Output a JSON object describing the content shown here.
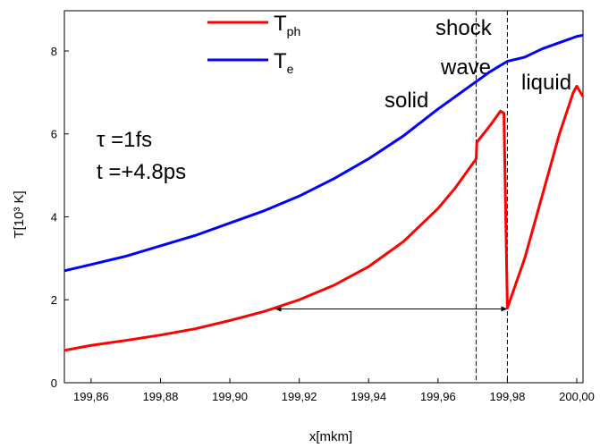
{
  "chart_data": {
    "type": "line",
    "xlabel": "x[mkm]",
    "ylabel": "T[10³ K]",
    "xlim": [
      199.8523,
      200.0018
    ],
    "ylim": [
      0,
      8.97
    ],
    "xticks": [
      {
        "value": 199.86,
        "label": "199,86"
      },
      {
        "value": 199.88,
        "label": "199,88"
      },
      {
        "value": 199.9,
        "label": "199,90"
      },
      {
        "value": 199.92,
        "label": "199,92"
      },
      {
        "value": 199.94,
        "label": "199,94"
      },
      {
        "value": 199.96,
        "label": "199,96"
      },
      {
        "value": 199.98,
        "label": "199,98"
      },
      {
        "value": 200.0,
        "label": "200,00"
      }
    ],
    "yticks": [
      0,
      2,
      4,
      6,
      8
    ],
    "series": [
      {
        "name": "T",
        "subscript": "ph",
        "color": "#ff0000",
        "x": [
          199.8523,
          199.86,
          199.87,
          199.88,
          199.89,
          199.9,
          199.91,
          199.92,
          199.93,
          199.94,
          199.95,
          199.96,
          199.965,
          199.971,
          199.9712,
          199.975,
          199.978,
          199.979,
          199.98,
          199.985,
          199.99,
          199.995,
          199.999,
          200.0,
          200.0018
        ],
        "values": [
          0.78,
          0.9,
          1.02,
          1.15,
          1.3,
          1.5,
          1.72,
          2.0,
          2.35,
          2.8,
          3.4,
          4.2,
          4.7,
          5.4,
          5.8,
          6.2,
          6.55,
          6.5,
          1.8,
          3.0,
          4.5,
          6.0,
          7.0,
          7.15,
          6.9
        ]
      },
      {
        "name": "T",
        "subscript": "e",
        "color": "#0000ff",
        "x": [
          199.8523,
          199.86,
          199.87,
          199.88,
          199.89,
          199.9,
          199.91,
          199.92,
          199.93,
          199.94,
          199.95,
          199.96,
          199.97,
          199.975,
          199.98,
          199.985,
          199.99,
          199.995,
          200.0,
          200.0018
        ],
        "values": [
          2.7,
          2.85,
          3.05,
          3.3,
          3.55,
          3.85,
          4.15,
          4.5,
          4.92,
          5.4,
          5.95,
          6.6,
          7.2,
          7.5,
          7.75,
          7.85,
          8.05,
          8.2,
          8.35,
          8.38
        ]
      }
    ],
    "vlines": [
      199.971,
      199.98
    ],
    "arrow": {
      "x": [
        199.913,
        199.98
      ],
      "y": 1.78
    },
    "annotations": [
      "solid",
      "shock",
      "wave",
      "liquid",
      "τ =1fs",
      "t =+4.8ps"
    ]
  }
}
